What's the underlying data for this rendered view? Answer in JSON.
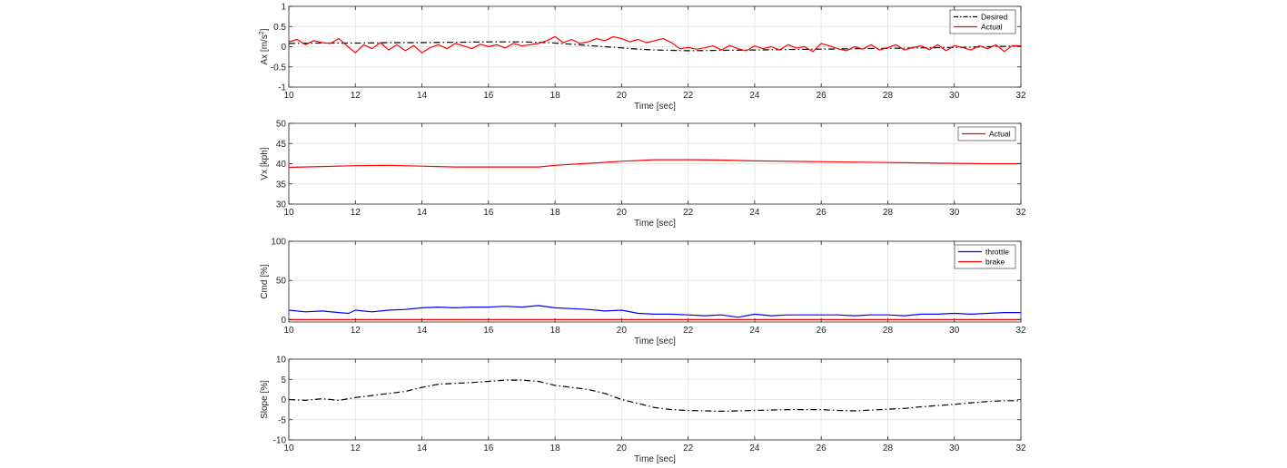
{
  "colors": {
    "desired": "#000000",
    "actual": "#ff0000",
    "throttle": "#0000ff",
    "brake": "#ff0000",
    "slope": "#000000",
    "grid": "#e6e6e6",
    "axis": "#262626"
  },
  "chart_data": [
    {
      "id": "ax",
      "type": "line",
      "xlabel": "Time [sec]",
      "ylabel_main": "Ax [m/s",
      "ylabel_sup": "2",
      "ylabel_tail": "]",
      "xlim": [
        10,
        32
      ],
      "ylim": [
        -1,
        1
      ],
      "xticks": [
        10,
        12,
        14,
        16,
        18,
        20,
        22,
        24,
        26,
        28,
        30,
        32
      ],
      "yticks": [
        -1,
        -0.5,
        0,
        0.5,
        1
      ],
      "ytick_labels": [
        "-1",
        "-0.5",
        "0",
        "0.5",
        "1"
      ],
      "grid": true,
      "legend": "top-right",
      "series": [
        {
          "name": "Desired",
          "style": "dashdot",
          "color": "#000000",
          "x": [
            10,
            11,
            12,
            13,
            14,
            15,
            16,
            17,
            17.8,
            18.5,
            19,
            19.5,
            20,
            20.5,
            21,
            21.5,
            22,
            23,
            24,
            25,
            26,
            27,
            28,
            29,
            30,
            31,
            32
          ],
          "y": [
            0.08,
            0.09,
            0.09,
            0.1,
            0.1,
            0.11,
            0.12,
            0.12,
            0.1,
            0.06,
            0.03,
            0,
            -0.03,
            -0.06,
            -0.08,
            -0.09,
            -0.1,
            -0.09,
            -0.08,
            -0.07,
            -0.06,
            -0.05,
            -0.04,
            -0.03,
            -0.02,
            0,
            0.02
          ]
        },
        {
          "name": "Actual",
          "style": "solid",
          "color": "#ff0000",
          "x": [
            10,
            10.25,
            10.5,
            10.75,
            11,
            11.25,
            11.5,
            11.75,
            12,
            12.25,
            12.5,
            12.75,
            13,
            13.25,
            13.5,
            13.75,
            14,
            14.25,
            14.5,
            14.75,
            15,
            15.25,
            15.5,
            15.75,
            16,
            16.25,
            16.5,
            16.75,
            17,
            17.25,
            17.5,
            17.75,
            18,
            18.25,
            18.5,
            18.75,
            19,
            19.25,
            19.5,
            19.75,
            20,
            20.25,
            20.5,
            20.75,
            21,
            21.25,
            21.5,
            21.75,
            22,
            22.25,
            22.5,
            22.75,
            23,
            23.25,
            23.5,
            23.75,
            24,
            24.25,
            24.5,
            24.75,
            25,
            25.25,
            25.5,
            25.75,
            26,
            26.25,
            26.5,
            26.75,
            27,
            27.25,
            27.5,
            27.75,
            28,
            28.25,
            28.5,
            28.75,
            29,
            29.25,
            29.5,
            29.75,
            30,
            30.25,
            30.5,
            30.75,
            31,
            31.25,
            31.5,
            31.75,
            32
          ],
          "y": [
            0.12,
            0.18,
            0.05,
            0.15,
            0.1,
            0.08,
            0.2,
            0.02,
            -0.15,
            0.05,
            -0.05,
            0.1,
            -0.08,
            0.05,
            -0.1,
            0.03,
            -0.15,
            -0.02,
            0.05,
            -0.05,
            0.08,
            0.02,
            -0.05,
            0.06,
            0,
            0.05,
            -0.03,
            0.08,
            0.02,
            0.05,
            0.08,
            0.15,
            0.25,
            0.1,
            0.18,
            0.08,
            0.12,
            0.2,
            0.15,
            0.25,
            0.2,
            0.12,
            0.18,
            0.1,
            0.15,
            0.2,
            0.1,
            -0.05,
            -0.02,
            -0.06,
            -0.03,
            0.02,
            -0.08,
            0.03,
            -0.05,
            -0.1,
            0.02,
            -0.05,
            0,
            -0.08,
            0.05,
            -0.03,
            0,
            -0.12,
            0.08,
            0.02,
            -0.05,
            -0.1,
            0,
            -0.06,
            0.05,
            -0.08,
            -0.02,
            0.05,
            -0.08,
            -0.02,
            0.02,
            -0.07,
            0.05,
            -0.1,
            0.03,
            -0.02,
            -0.08,
            0.02,
            -0.05,
            0.05,
            -0.12,
            0.03,
            0.02
          ]
        }
      ]
    },
    {
      "id": "vx",
      "type": "line",
      "xlabel": "Time [sec]",
      "ylabel_main": "Vx [kph]",
      "xlim": [
        10,
        32
      ],
      "ylim": [
        30,
        50
      ],
      "xticks": [
        10,
        12,
        14,
        16,
        18,
        20,
        22,
        24,
        26,
        28,
        30,
        32
      ],
      "yticks": [
        30,
        35,
        40,
        45,
        50
      ],
      "ytick_labels": [
        "30",
        "35",
        "40",
        "45",
        "50"
      ],
      "grid": true,
      "legend": "top-right",
      "series": [
        {
          "name": "Actual",
          "style": "solid",
          "color": "#ff0000",
          "x": [
            10,
            11,
            12,
            13,
            14,
            15,
            16,
            17,
            17.5,
            18,
            19,
            20,
            21,
            22,
            23,
            24,
            25,
            26,
            27,
            28,
            29,
            30,
            31,
            32
          ],
          "y": [
            39.1,
            39.3,
            39.5,
            39.6,
            39.4,
            39.2,
            39.2,
            39.2,
            39.2,
            39.6,
            40.1,
            40.6,
            41,
            41,
            40.9,
            40.7,
            40.6,
            40.5,
            40.4,
            40.3,
            40.2,
            40.1,
            40,
            40
          ]
        }
      ]
    },
    {
      "id": "cmd",
      "type": "line",
      "xlabel": "Time [sec]",
      "ylabel_main": "Cmd [%]",
      "xlim": [
        10,
        32
      ],
      "ylim": [
        -3,
        100
      ],
      "xticks": [
        10,
        12,
        14,
        16,
        18,
        20,
        22,
        24,
        26,
        28,
        30,
        32
      ],
      "yticks": [
        0,
        50,
        100
      ],
      "ytick_labels": [
        "0",
        "50",
        "100"
      ],
      "grid": true,
      "legend": "top-right",
      "series": [
        {
          "name": "throttle",
          "style": "solid",
          "color": "#0000ff",
          "x": [
            10,
            10.5,
            11,
            11.5,
            11.8,
            12,
            12.5,
            13,
            13.5,
            14,
            14.5,
            15,
            15.5,
            16,
            16.5,
            17,
            17.5,
            18,
            18.5,
            19,
            19.5,
            20,
            20.5,
            21,
            21.5,
            22,
            22.5,
            23,
            23.5,
            24,
            24.5,
            25,
            25.5,
            26,
            26.5,
            27,
            27.5,
            28,
            28.5,
            29,
            29.5,
            30,
            30.5,
            31,
            31.5,
            32
          ],
          "y": [
            12,
            10,
            11,
            9,
            8,
            12,
            10,
            12,
            13,
            15,
            16,
            15,
            16,
            16,
            17,
            16,
            18,
            15,
            14,
            13,
            11,
            12,
            8,
            7,
            7,
            6,
            5,
            6,
            3,
            7,
            5,
            6,
            6,
            6,
            6,
            5,
            6,
            6,
            5,
            7,
            7,
            8,
            7,
            8,
            9,
            9
          ]
        },
        {
          "name": "brake",
          "style": "solid",
          "color": "#ff0000",
          "x": [
            10,
            32
          ],
          "y": [
            0,
            0
          ]
        }
      ]
    },
    {
      "id": "slope",
      "type": "line",
      "xlabel": "Time [sec]",
      "ylabel_main": "Slope [%]",
      "xlim": [
        10,
        32
      ],
      "ylim": [
        -10,
        10
      ],
      "xticks": [
        10,
        12,
        14,
        16,
        18,
        20,
        22,
        24,
        26,
        28,
        30,
        32
      ],
      "yticks": [
        -10,
        -5,
        0,
        5,
        10
      ],
      "ytick_labels": [
        "-10",
        "-5",
        "0",
        "5",
        "10"
      ],
      "grid": true,
      "legend": "",
      "series": [
        {
          "style": "dashdot",
          "color": "#000000",
          "x": [
            10,
            10.5,
            11,
            11.5,
            12,
            12.5,
            13,
            13.5,
            14,
            14.5,
            15,
            15.5,
            16,
            16.5,
            17,
            17.5,
            18,
            18.5,
            19,
            19.5,
            20,
            20.5,
            21,
            21.5,
            22,
            22.5,
            23,
            23.5,
            24,
            24.5,
            25,
            25.5,
            26,
            26.5,
            27,
            27.5,
            28,
            28.5,
            29,
            29.5,
            30,
            30.5,
            31,
            31.5,
            32
          ],
          "y": [
            0,
            -0.2,
            0.2,
            -0.2,
            0.5,
            1,
            1.5,
            2,
            3,
            3.8,
            4,
            4.2,
            4.5,
            4.8,
            4.8,
            4.5,
            3.5,
            3,
            2.5,
            1.5,
            0,
            -1,
            -2,
            -2.5,
            -2.7,
            -2.8,
            -2.9,
            -2.8,
            -2.7,
            -2.6,
            -2.5,
            -2.5,
            -2.5,
            -2.7,
            -2.8,
            -2.6,
            -2.4,
            -2.2,
            -1.8,
            -1.5,
            -1.2,
            -0.8,
            -0.5,
            -0.3,
            -0.3
          ]
        }
      ]
    }
  ]
}
